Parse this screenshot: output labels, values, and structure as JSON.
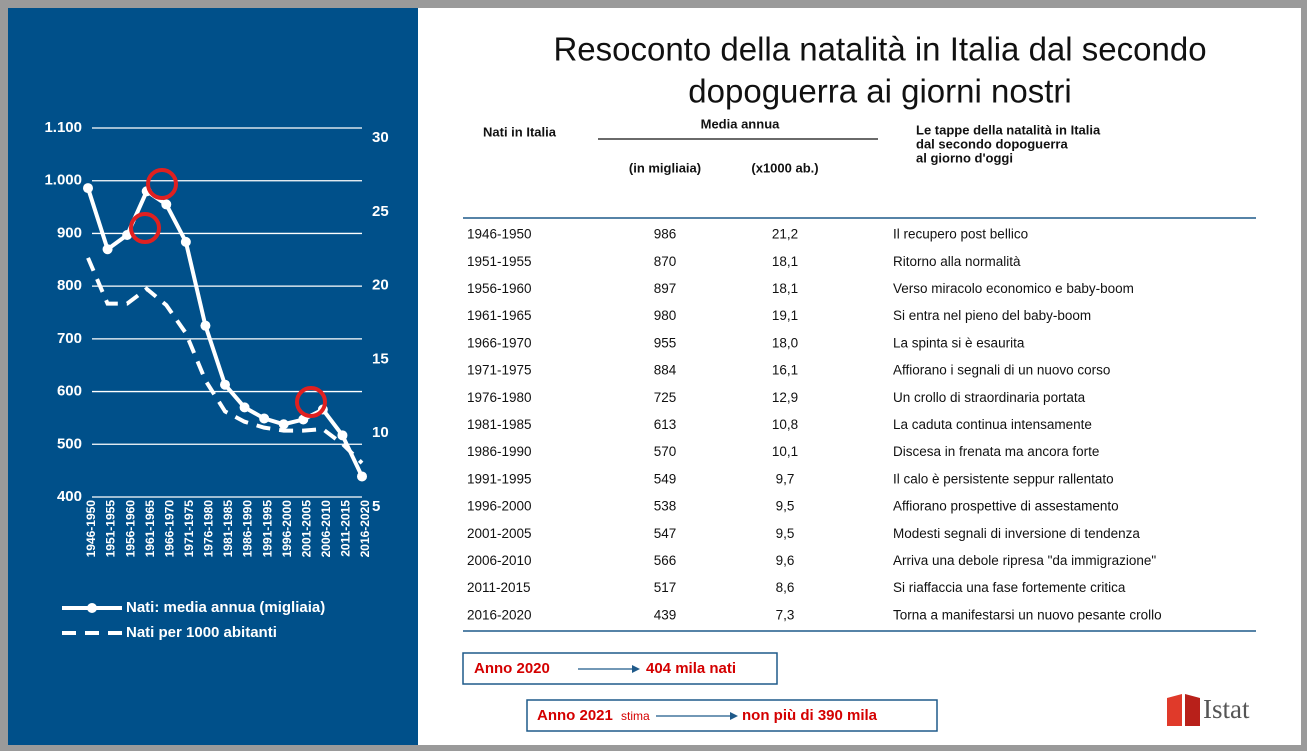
{
  "chart_data": {
    "type": "line",
    "categories": [
      "1946-1950",
      "1951-1955",
      "1956-1960",
      "1961-1965",
      "1966-1970",
      "1971-1975",
      "1976-1980",
      "1981-1985",
      "1986-1990",
      "1991-1995",
      "1996-2000",
      "2001-2005",
      "2006-2010",
      "2011-2015",
      "2016-2020"
    ],
    "series": [
      {
        "name": "Nati: media annua (migliaia)",
        "color": "#ffffff",
        "style": "solid",
        "markers": true,
        "values": [
          986,
          870,
          897,
          980,
          955,
          884,
          725,
          613,
          570,
          549,
          538,
          547,
          566,
          517,
          439
        ]
      },
      {
        "name": "Nati per 1000 abitanti",
        "color": "#ffffff",
        "style": "dashed",
        "markers": false,
        "axis": "y2",
        "values": [
          21.2,
          18.1,
          18.1,
          19.1,
          18.0,
          16.1,
          12.9,
          10.8,
          10.1,
          9.7,
          9.5,
          9.5,
          9.6,
          8.6,
          7.3
        ]
      }
    ],
    "ylim": [
      400,
      1100
    ],
    "yticks": [
      400,
      500,
      600,
      700,
      800,
      900,
      {
        "value": 1000,
        "label": "1.000"
      },
      {
        "value": 1100,
        "label": "1.100"
      }
    ],
    "y2lim": [
      5,
      30
    ],
    "y2ticks": [
      5,
      10,
      15,
      20,
      25,
      30
    ],
    "grid": true
  },
  "title": [
    "Resoconto della natalità in Italia dal secondo",
    "dopoguerra ai giorni nostri"
  ],
  "table": {
    "header": {
      "col0": "Nati in Italia",
      "group": "Media annua",
      "col1": "(in migliaia)",
      "col2": "(x1000 ab.)",
      "col3": [
        "Le tappe della natalità in Italia",
        "dal secondo dopoguerra",
        "al giorno d'oggi"
      ]
    },
    "rows": [
      [
        "1946-1950",
        "986",
        "21,2",
        "Il recupero post bellico"
      ],
      [
        "1951-1955",
        "870",
        "18,1",
        "Ritorno alla normalità"
      ],
      [
        "1956-1960",
        "897",
        "18,1",
        "Verso miracolo economico e  baby-boom"
      ],
      [
        "1961-1965",
        "980",
        "19,1",
        "Si entra nel pieno del baby-boom"
      ],
      [
        "1966-1970",
        "955",
        "18,0",
        "La spinta si è esaurita"
      ],
      [
        "1971-1975",
        "884",
        "16,1",
        "Affiorano i segnali di un nuovo corso"
      ],
      [
        "1976-1980",
        "725",
        "12,9",
        "Un crollo di straordinaria portata"
      ],
      [
        "1981-1985",
        "613",
        "10,8",
        "La caduta continua intensamente"
      ],
      [
        "1986-1990",
        "570",
        "10,1",
        "Discesa in frenata ma ancora forte"
      ],
      [
        "1991-1995",
        "549",
        "9,7",
        "Il calo è persistente seppur rallentato"
      ],
      [
        "1996-2000",
        "538",
        "9,5",
        "Affiorano prospettive di assestamento"
      ],
      [
        "2001-2005",
        "547",
        "9,5",
        "Modesti segnali di inversione di tendenza"
      ],
      [
        "2006-2010",
        "566",
        "9,6",
        "Arriva una debole ripresa \"da immigrazione\""
      ],
      [
        "2011-2015",
        "517",
        "8,6",
        "Si riaffaccia una  fase fortemente critica"
      ],
      [
        "2016-2020",
        "439",
        "7,3",
        "Torna a manifestarsi un nuovo pesante crollo"
      ]
    ]
  },
  "notes": [
    {
      "year": "Anno 2020",
      "result": "404 mila nati"
    },
    {
      "year": "Anno 2021",
      "tag": "stima",
      "result": "non più di 390 mila"
    }
  ],
  "logo": "Istat"
}
